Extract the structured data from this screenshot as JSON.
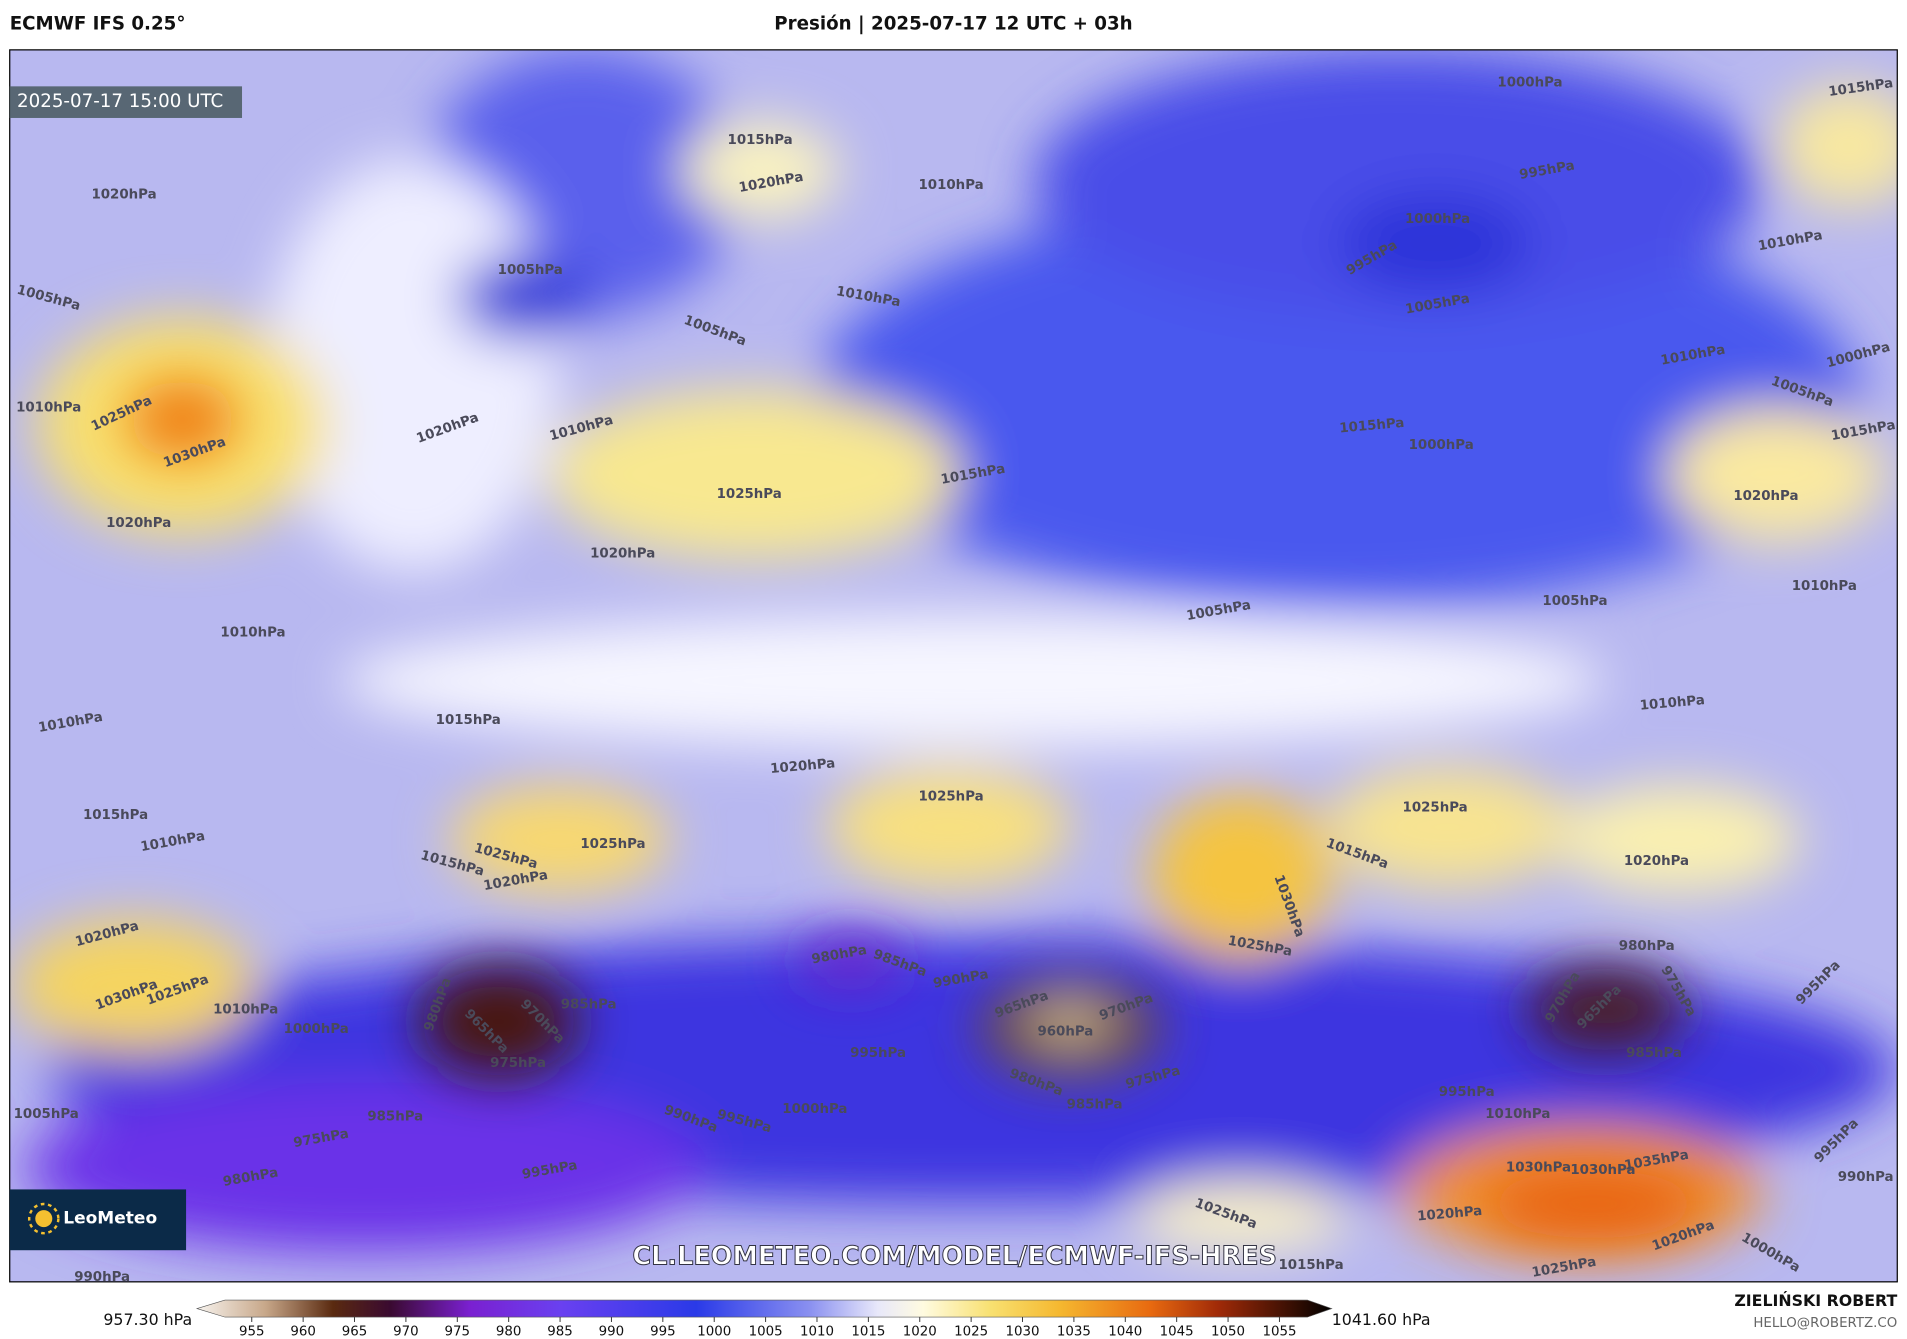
{
  "header": {
    "model": "ECMWF IFS 0.25°",
    "title": "Presión | 2025-07-17 12 UTC + 03h"
  },
  "map": {
    "valid_time": "2025-07-17 15:00 UTC",
    "isobar_labels": [
      "1000hPa",
      "1015hPa",
      "1015hPa",
      "1020hPa",
      "1020hPa",
      "1010hPa",
      "995hPa",
      "1000hPa",
      "1010hPa",
      "995hPa",
      "1005hPa",
      "1010hPa",
      "1005hPa",
      "1005hPa",
      "1005hPa",
      "1010hPa",
      "1000hPa",
      "1005hPa",
      "1015hPa",
      "1010hPa",
      "1025hPa",
      "1030hPa",
      "1020hPa",
      "1010hPa",
      "1015hPa",
      "1000hPa",
      "1015hPa",
      "1025hPa",
      "1020hPa",
      "1020hPa",
      "1020hPa",
      "1010hPa",
      "1005hPa",
      "1005hPa",
      "1010hPa",
      "1010hPa",
      "1015hPa",
      "1010hPa",
      "1020hPa",
      "1025hPa",
      "1025hPa",
      "1015hPa",
      "1010hPa",
      "1025hPa",
      "1025hPa",
      "1015hPa",
      "1020hPa",
      "1015hPa",
      "1020hPa",
      "1030hPa",
      "1025hPa",
      "1020hPa",
      "980hPa",
      "985hPa",
      "990hPa",
      "980hPa",
      "1030hPa",
      "1025hPa",
      "1010hPa",
      "970hPa",
      "985hPa",
      "965hPa",
      "980hPa",
      "965hPa",
      "970hPa",
      "960hPa",
      "965hPa",
      "970hPa",
      "975hPa",
      "995hPa",
      "1000hPa",
      "975hPa",
      "995hPa",
      "985hPa",
      "980hPa",
      "975hPa",
      "985hPa",
      "995hPa",
      "1005hPa",
      "985hPa",
      "990hPa",
      "995hPa",
      "1000hPa",
      "1010hPa",
      "975hPa",
      "995hPa",
      "980hPa",
      "995hPa",
      "1030hPa",
      "1030hPa",
      "1035hPa",
      "990hPa",
      "1025hPa",
      "1020hPa",
      "1020hPa",
      "1015hPa",
      "1025hPa",
      "1000hPa",
      "990hPa"
    ],
    "logo": "LeoMeteo",
    "watermark": "CL.LEOMETEO.COM/MODEL/ECMWF-IFS-HRES"
  },
  "colorbar": {
    "min_label": "957.30 hPa",
    "max_label": "1041.60 hPa",
    "ticks": [
      955,
      960,
      965,
      970,
      975,
      980,
      985,
      990,
      995,
      1000,
      1005,
      1010,
      1015,
      1020,
      1025,
      1030,
      1035,
      1040,
      1045,
      1050,
      1055
    ]
  },
  "footer": {
    "author": "ZIELIŃSKI ROBERT",
    "email": "HELLO@ROBERTZ.CO"
  }
}
